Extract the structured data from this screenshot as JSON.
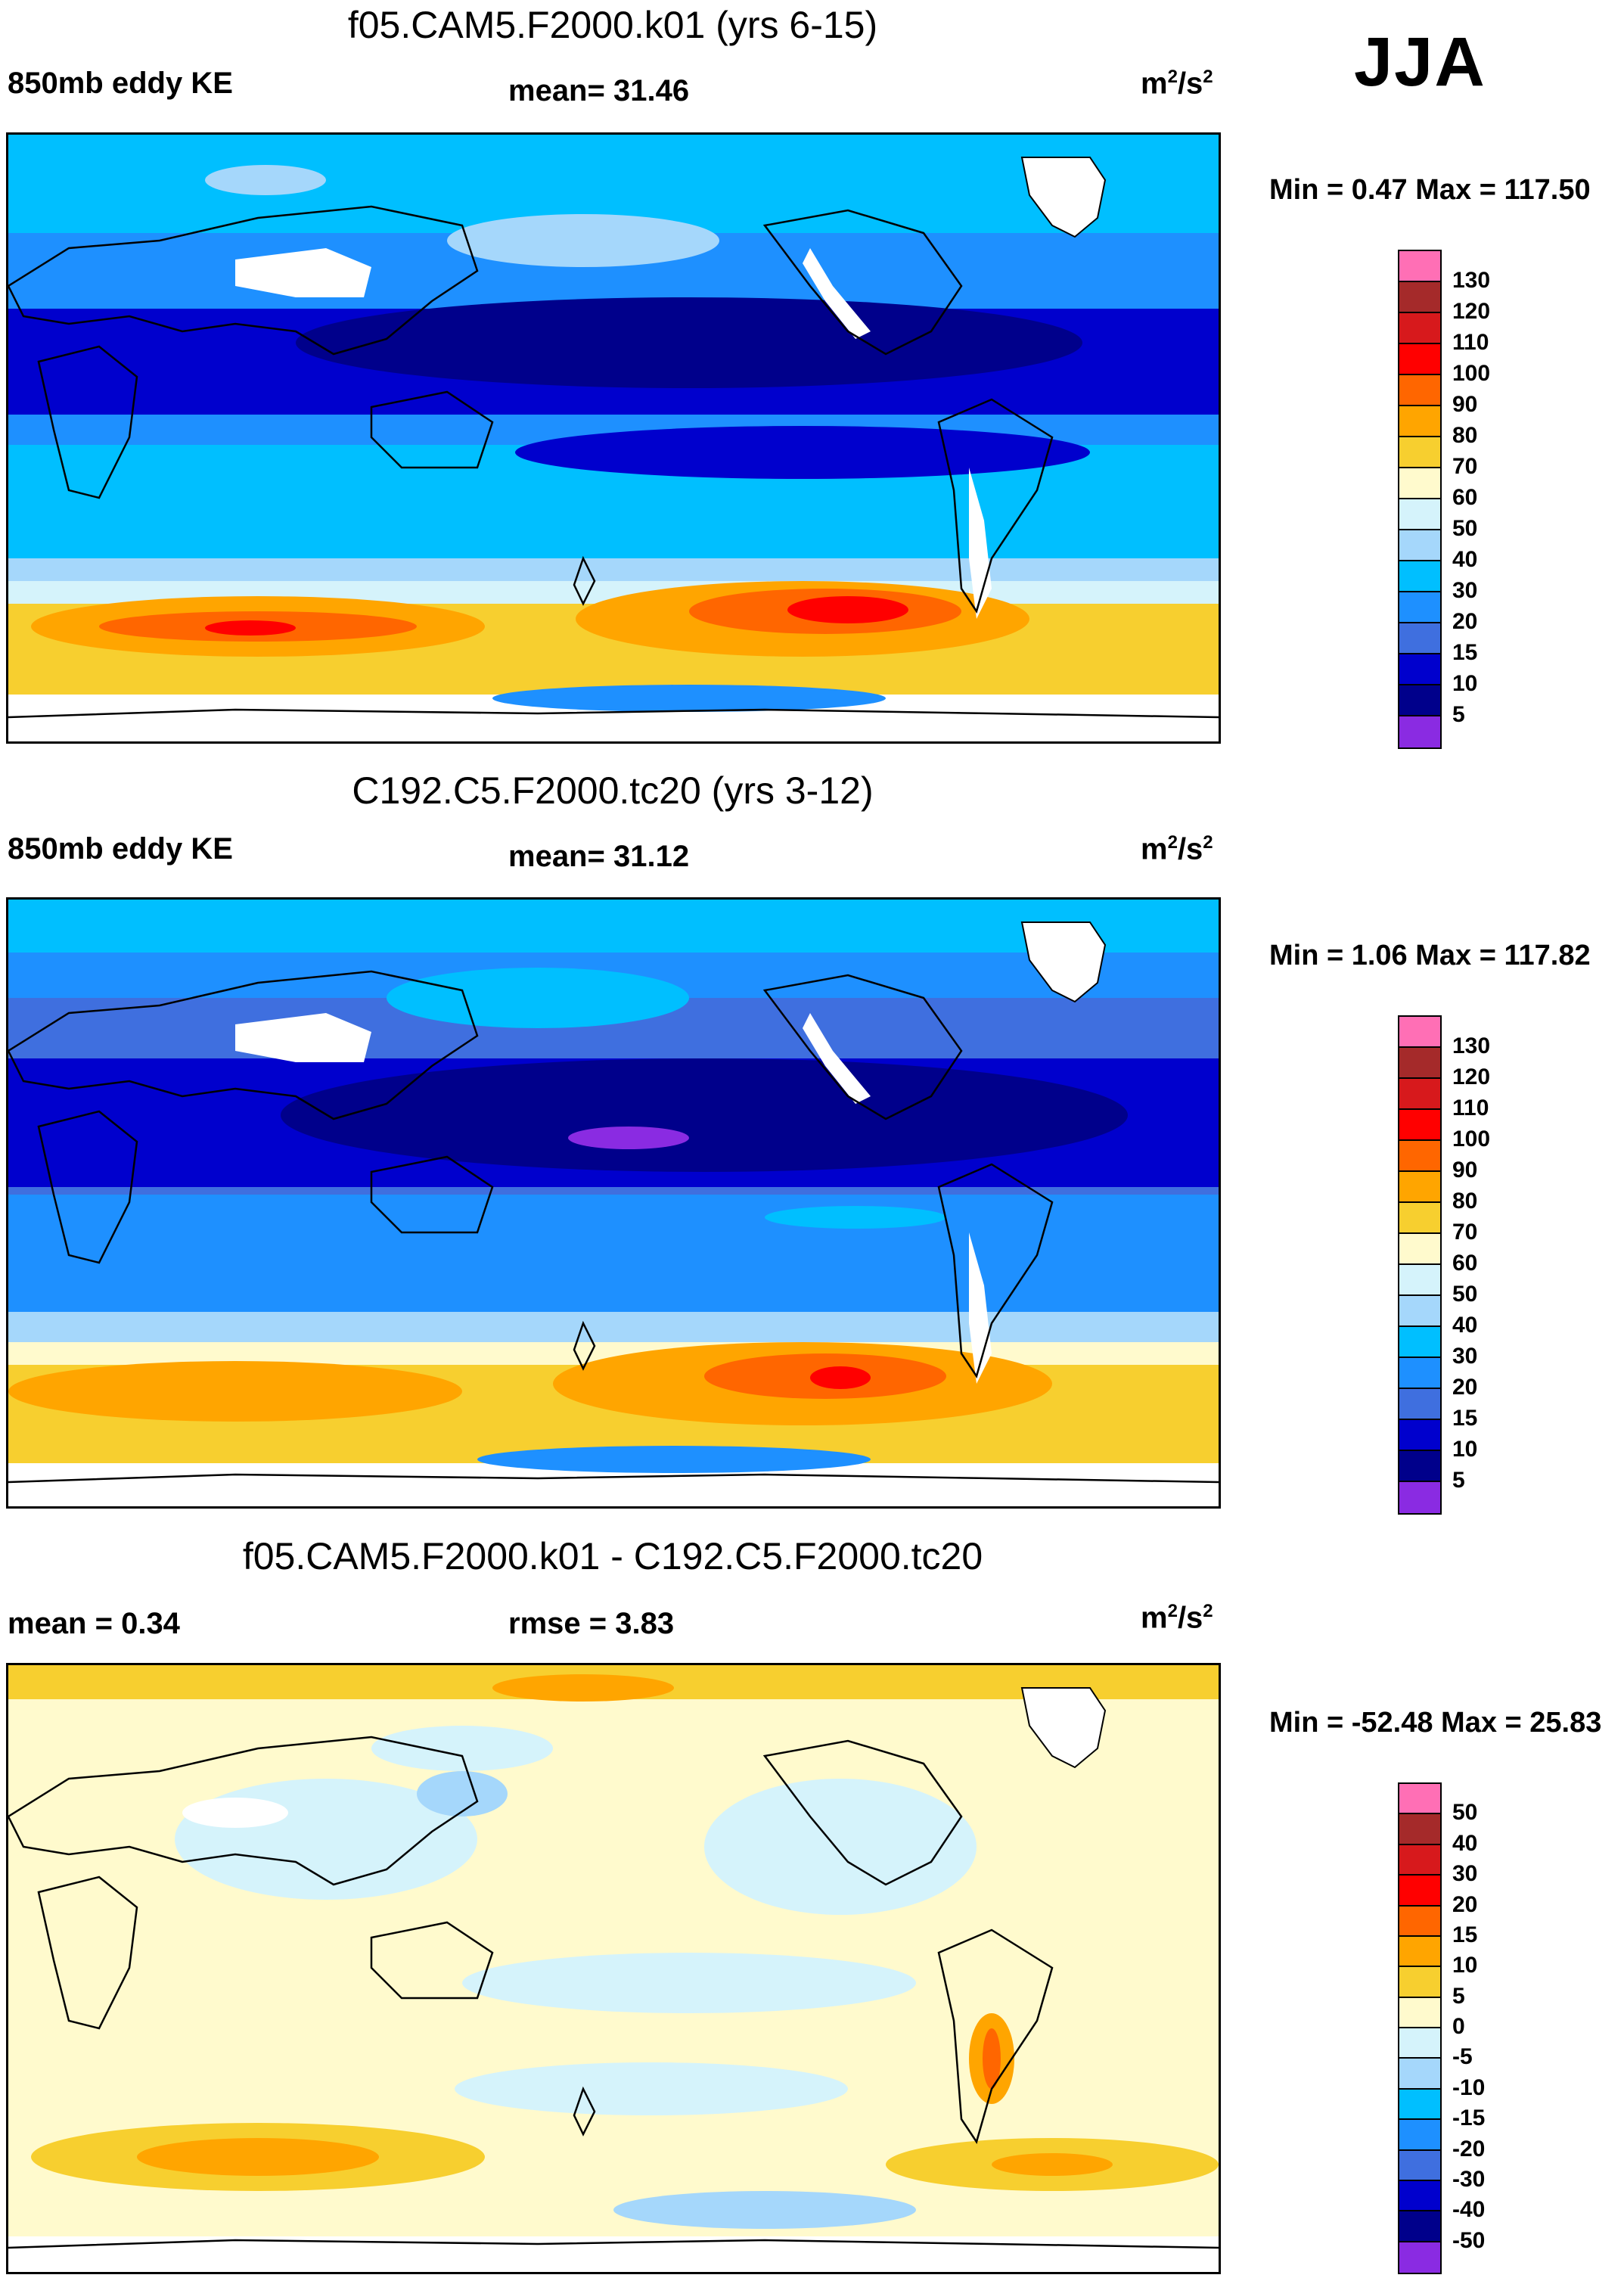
{
  "season": "JJA",
  "panels": [
    {
      "title": "f05.CAM5.F2000.k01 (yrs 6-15)",
      "left_label": "850mb eddy KE",
      "mid_label": "mean=  31.46",
      "units_base": "m",
      "units_sup1": "2",
      "units_mid": "/s",
      "units_sup2": "2",
      "minmax": "Min =   0.47 Max = 117.50",
      "colorbar": {
        "colors": [
          "#ff6fb5",
          "#a52a2a",
          "#d7191c",
          "#ff0000",
          "#ff6600",
          "#ffa500",
          "#f7cf2f",
          "#fffacd",
          "#d5f3fb",
          "#a5d7fb",
          "#00bfff",
          "#1e90ff",
          "#3f6fdf",
          "#0000cd",
          "#00008b",
          "#8a2be2"
        ],
        "labels": [
          "130",
          "120",
          "110",
          "100",
          "90",
          "80",
          "70",
          "60",
          "50",
          "40",
          "30",
          "20",
          "15",
          "10",
          "5"
        ]
      }
    },
    {
      "title": "C192.C5.F2000.tc20 (yrs 3-12)",
      "left_label": "850mb eddy KE",
      "mid_label": "mean=  31.12",
      "units_base": "m",
      "units_sup1": "2",
      "units_mid": "/s",
      "units_sup2": "2",
      "minmax": "Min =   1.06 Max = 117.82",
      "colorbar": {
        "colors": [
          "#ff6fb5",
          "#a52a2a",
          "#d7191c",
          "#ff0000",
          "#ff6600",
          "#ffa500",
          "#f7cf2f",
          "#fffacd",
          "#d5f3fb",
          "#a5d7fb",
          "#00bfff",
          "#1e90ff",
          "#3f6fdf",
          "#0000cd",
          "#00008b",
          "#8a2be2"
        ],
        "labels": [
          "130",
          "120",
          "110",
          "100",
          "90",
          "80",
          "70",
          "60",
          "50",
          "40",
          "30",
          "20",
          "15",
          "10",
          "5"
        ]
      }
    },
    {
      "title": "f05.CAM5.F2000.k01 - C192.C5.F2000.tc20",
      "left_label": "mean =   0.34",
      "mid_label": "rmse =   3.83",
      "units_base": "m",
      "units_sup1": "2",
      "units_mid": "/s",
      "units_sup2": "2",
      "minmax": "Min = -52.48 Max =  25.83",
      "colorbar": {
        "colors": [
          "#ff6fb5",
          "#a52a2a",
          "#d7191c",
          "#ff0000",
          "#ff6600",
          "#ffa500",
          "#f7cf2f",
          "#fffacd",
          "#d5f3fb",
          "#a5d7fb",
          "#00bfff",
          "#1e90ff",
          "#3f6fdf",
          "#0000cd",
          "#00008b",
          "#8a2be2"
        ],
        "labels": [
          "50",
          "40",
          "30",
          "20",
          "15",
          "10",
          "5",
          "0",
          "-5",
          "-10",
          "-15",
          "-20",
          "-30",
          "-40",
          "-50"
        ]
      }
    }
  ]
}
